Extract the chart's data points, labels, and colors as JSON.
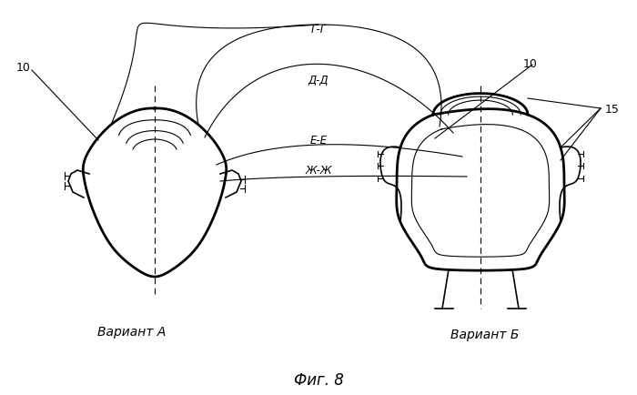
{
  "title": "Фиг. 8",
  "label_variant_a": "Вариант А",
  "label_variant_b": "Вариант Б",
  "label_10_left": "10",
  "label_10_right": "10",
  "label_15": "15",
  "cross_section_labels": [
    "Г-Г",
    "Д-Д",
    "Е-Е",
    "Ж-Ж"
  ],
  "bg_color": "#ffffff",
  "line_color": "#000000",
  "fig_size": [
    7.0,
    4.35
  ],
  "dpi": 100
}
